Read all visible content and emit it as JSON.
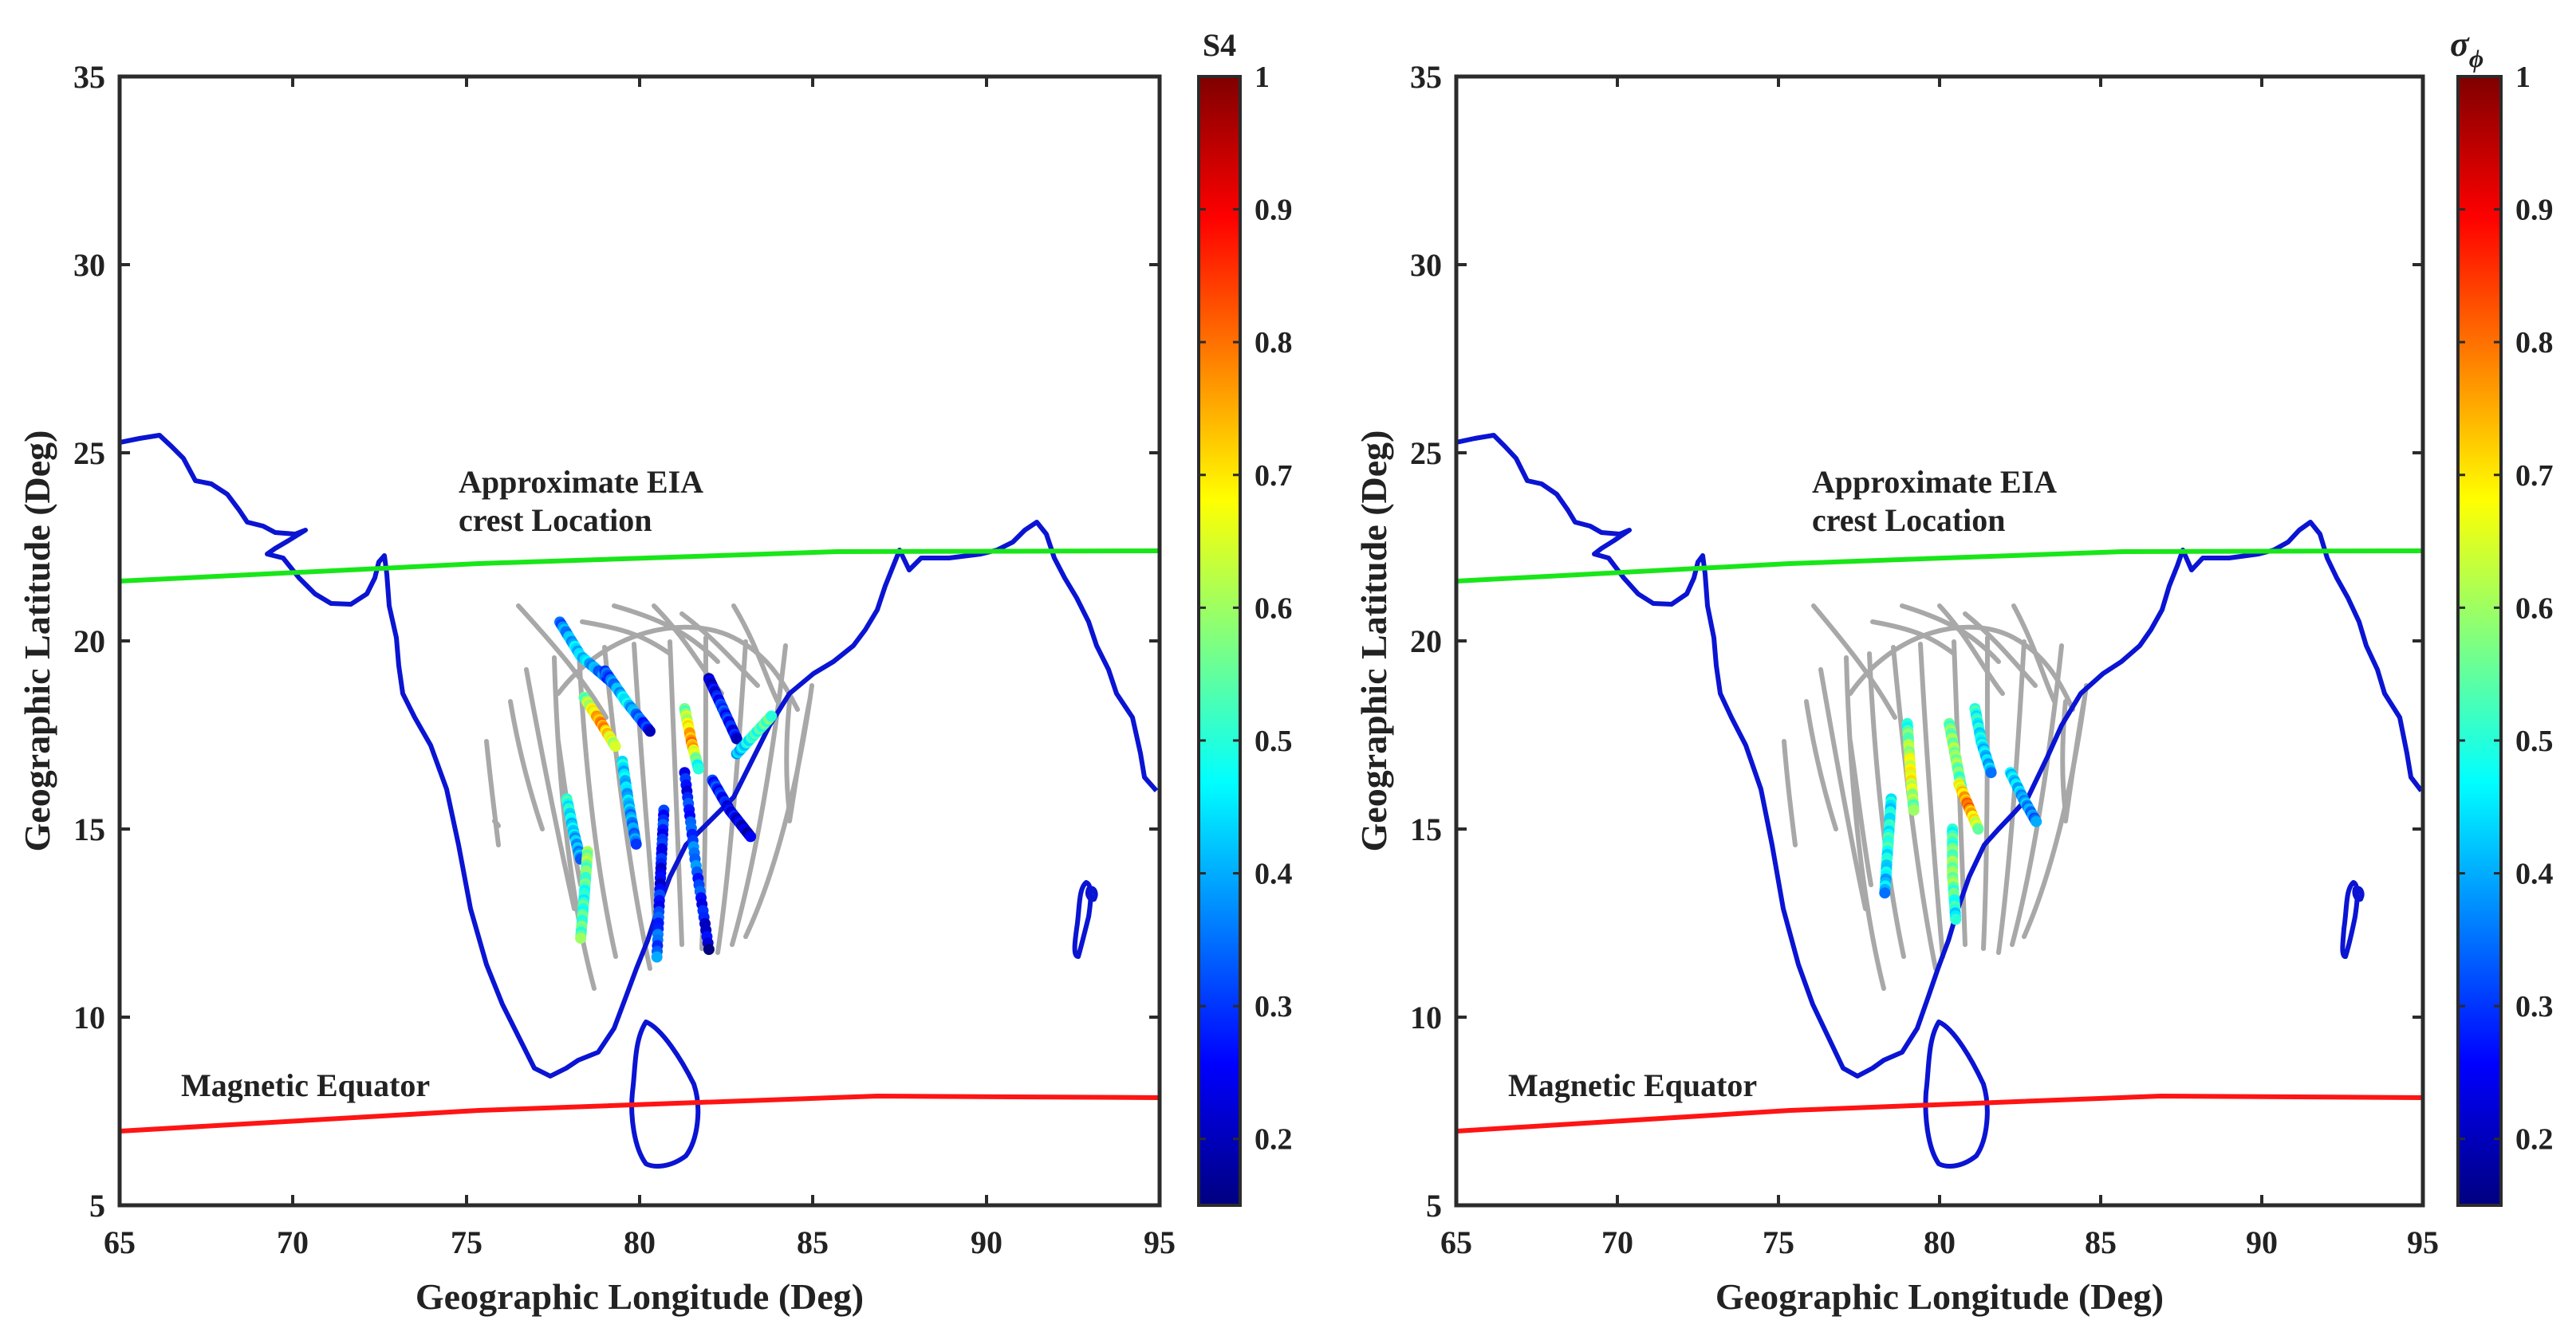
{
  "chart_data": [
    {
      "type": "scatter",
      "title": "",
      "xlabel": "Geographic Longitude (Deg)",
      "ylabel": "Geographic Latitude (Deg)",
      "xlim": [
        65,
        95
      ],
      "ylim": [
        5,
        35
      ],
      "xticks": [
        "65",
        "70",
        "75",
        "80",
        "85",
        "90",
        "95"
      ],
      "yticks": [
        "5",
        "10",
        "15",
        "20",
        "25",
        "30",
        "35"
      ],
      "colorbar": {
        "label": "S4",
        "range": [
          0.15,
          1
        ],
        "ticks": [
          "0.2",
          "0.3",
          "0.4",
          "0.5",
          "0.6",
          "0.7",
          "0.8",
          "0.9",
          "1"
        ]
      },
      "annotations": [
        "Approximate EIA",
        "crest Location",
        "Magnetic Equator"
      ],
      "eia_crest_line": {
        "x": [
          65,
          75,
          85,
          95
        ],
        "y": [
          21.6,
          22.0,
          22.3,
          22.4
        ]
      },
      "magnetic_equator_line": {
        "x": [
          65,
          75,
          85,
          95
        ],
        "y": [
          6.9,
          7.4,
          7.8,
          7.8
        ]
      },
      "scintillation_tracks": [
        {
          "x": [
            77.7,
            78.3,
            79.2
          ],
          "y": [
            20.5,
            19.6,
            18.9
          ],
          "s4": [
            0.35,
            0.45,
            0.3
          ]
        },
        {
          "x": [
            77.9,
            78.1,
            78.3
          ],
          "y": [
            15.8,
            14.9,
            14.2
          ],
          "s4": [
            0.5,
            0.42,
            0.38
          ]
        },
        {
          "x": [
            78.4,
            78.9,
            79.3
          ],
          "y": [
            18.5,
            17.8,
            17.2
          ],
          "s4": [
            0.55,
            0.8,
            0.6
          ]
        },
        {
          "x": [
            79.0,
            79.6,
            80.3
          ],
          "y": [
            19.2,
            18.4,
            17.6
          ],
          "s4": [
            0.3,
            0.45,
            0.25
          ]
        },
        {
          "x": [
            78.5,
            78.4,
            78.3
          ],
          "y": [
            14.4,
            13.2,
            12.1
          ],
          "s4": [
            0.6,
            0.5,
            0.55
          ]
        },
        {
          "x": [
            79.5,
            79.7,
            79.9
          ],
          "y": [
            16.8,
            15.6,
            14.6
          ],
          "s4": [
            0.45,
            0.4,
            0.35
          ]
        },
        {
          "x": [
            80.7,
            80.6,
            80.5
          ],
          "y": [
            15.5,
            13.7,
            11.6
          ],
          "s4": [
            0.3,
            0.25,
            0.35
          ]
        },
        {
          "x": [
            81.3,
            81.6,
            82.0
          ],
          "y": [
            16.5,
            14.2,
            11.8
          ],
          "s4": [
            0.25,
            0.35,
            0.2
          ]
        },
        {
          "x": [
            81.3,
            81.5,
            81.7
          ],
          "y": [
            18.2,
            17.3,
            16.6
          ],
          "s4": [
            0.55,
            0.8,
            0.45
          ]
        },
        {
          "x": [
            82.0,
            82.4,
            82.8
          ],
          "y": [
            19.0,
            18.2,
            17.4
          ],
          "s4": [
            0.2,
            0.3,
            0.25
          ]
        },
        {
          "x": [
            82.1,
            82.6,
            83.2
          ],
          "y": [
            16.3,
            15.5,
            14.8
          ],
          "s4": [
            0.3,
            0.25,
            0.2
          ]
        },
        {
          "x": [
            82.8,
            83.3,
            83.8
          ],
          "y": [
            17.0,
            17.5,
            18.0
          ],
          "s4": [
            0.4,
            0.5,
            0.55
          ]
        }
      ]
    },
    {
      "type": "scatter",
      "title": "",
      "xlabel": "Geographic Longitude (Deg)",
      "ylabel": "Geographic Latitude (Deg)",
      "xlim": [
        65,
        95
      ],
      "ylim": [
        5,
        35
      ],
      "xticks": [
        "65",
        "70",
        "75",
        "80",
        "85",
        "90",
        "95"
      ],
      "yticks": [
        "5",
        "10",
        "15",
        "20",
        "25",
        "30",
        "35"
      ],
      "colorbar": {
        "label": "σ",
        "label_sub": "ϕ",
        "range": [
          0.15,
          1
        ],
        "ticks": [
          "0.2",
          "0.3",
          "0.4",
          "0.5",
          "0.6",
          "0.7",
          "0.8",
          "0.9",
          "1"
        ]
      },
      "annotations": [
        "Approximate EIA",
        "crest Location",
        "Magnetic Equator"
      ],
      "eia_crest_line": {
        "x": [
          65,
          75,
          85,
          95
        ],
        "y": [
          21.6,
          22.0,
          22.3,
          22.4
        ]
      },
      "magnetic_equator_line": {
        "x": [
          65,
          75,
          85,
          95
        ],
        "y": [
          6.9,
          7.4,
          7.8,
          7.8
        ]
      },
      "scintillation_tracks": [
        {
          "x": [
            79.0,
            79.1,
            79.2
          ],
          "y": [
            17.8,
            16.5,
            15.5
          ],
          "s4": [
            0.5,
            0.7,
            0.55
          ]
        },
        {
          "x": [
            78.5,
            78.4,
            78.3
          ],
          "y": [
            15.8,
            14.6,
            13.3
          ],
          "s4": [
            0.45,
            0.5,
            0.4
          ]
        },
        {
          "x": [
            80.3,
            80.5,
            80.7
          ],
          "y": [
            17.8,
            16.9,
            16.0
          ],
          "s4": [
            0.55,
            0.6,
            0.5
          ]
        },
        {
          "x": [
            80.6,
            80.9,
            81.2
          ],
          "y": [
            16.2,
            15.6,
            15.0
          ],
          "s4": [
            0.65,
            0.8,
            0.6
          ]
        },
        {
          "x": [
            80.4,
            80.4,
            80.5
          ],
          "y": [
            15.0,
            13.8,
            12.6
          ],
          "s4": [
            0.5,
            0.6,
            0.45
          ]
        },
        {
          "x": [
            81.1,
            81.3,
            81.6
          ],
          "y": [
            18.2,
            17.3,
            16.5
          ],
          "s4": [
            0.5,
            0.45,
            0.4
          ]
        },
        {
          "x": [
            82.2,
            82.6,
            83.0
          ],
          "y": [
            16.5,
            15.8,
            15.2
          ],
          "s4": [
            0.45,
            0.4,
            0.35
          ]
        }
      ]
    }
  ]
}
